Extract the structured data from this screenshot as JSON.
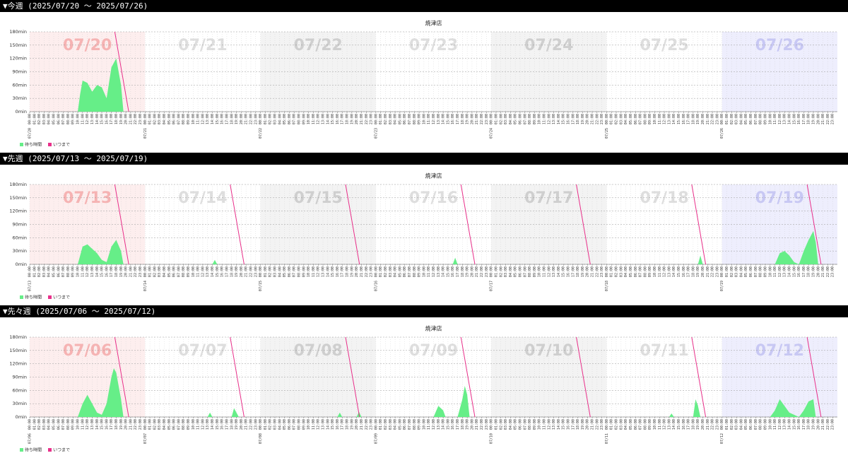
{
  "chart_data": [
    {
      "type": "area",
      "header": "▼今週 (2025/07/20 〜 2025/07/26)",
      "title": "焼津店",
      "days": [
        "07/20",
        "07/21",
        "07/22",
        "07/23",
        "07/24",
        "07/25",
        "07/26"
      ],
      "hours": [
        "00:00",
        "01:00",
        "02:00",
        "03:00",
        "04:00",
        "05:00",
        "06:00",
        "07:00",
        "08:00",
        "09:00",
        "10:00",
        "11:00",
        "12:00",
        "13:00",
        "14:00",
        "15:00",
        "16:00",
        "17:00",
        "18:00",
        "19:00",
        "20:00",
        "21:00",
        "22:00",
        "23:00"
      ],
      "band_colors": [
        "#fdeeee",
        "#ffffff",
        "#f3f3f3",
        "#ffffff",
        "#f3f3f3",
        "#ffffff",
        "#eeeefd"
      ],
      "day_label_colors": [
        "#f6b3b3",
        "#dedede",
        "#cfcfcf",
        "#dedede",
        "#cfcfcf",
        "#dedede",
        "#c8c8f4"
      ],
      "xlim": [
        0,
        168
      ],
      "ylim": [
        0,
        180
      ],
      "yticks": [
        {
          "value": 0,
          "label": "0min"
        },
        {
          "value": 30,
          "label": "30min"
        },
        {
          "value": 60,
          "label": "60min"
        },
        {
          "value": 90,
          "label": "90min"
        },
        {
          "value": 120,
          "label": "120min"
        },
        {
          "value": 150,
          "label": "150min"
        },
        {
          "value": 180,
          "label": "180min"
        }
      ],
      "grid": true,
      "series": [
        {
          "name": "待ち時間",
          "kind": "area",
          "color": "#66ee88",
          "x": [
            10,
            10.5,
            11,
            12,
            13,
            14,
            15,
            16,
            17,
            18,
            18.5,
            19,
            19.5
          ],
          "values": [
            0,
            40,
            70,
            65,
            45,
            60,
            55,
            30,
            100,
            120,
            90,
            60,
            0
          ]
        },
        {
          "name": "いつまで",
          "kind": "line",
          "color": "#e8308a",
          "x": [
            17.7,
            20.6
          ],
          "values": [
            180,
            0
          ]
        }
      ]
    },
    {
      "type": "area",
      "header": "▼先週 (2025/07/13 〜 2025/07/19)",
      "title": "焼津店",
      "days": [
        "07/13",
        "07/14",
        "07/15",
        "07/16",
        "07/17",
        "07/18",
        "07/19"
      ],
      "hours": [
        "00:00",
        "01:00",
        "02:00",
        "03:00",
        "04:00",
        "05:00",
        "06:00",
        "07:00",
        "08:00",
        "09:00",
        "10:00",
        "11:00",
        "12:00",
        "13:00",
        "14:00",
        "15:00",
        "16:00",
        "17:00",
        "18:00",
        "19:00",
        "20:00",
        "21:00",
        "22:00",
        "23:00"
      ],
      "band_colors": [
        "#fdeeee",
        "#ffffff",
        "#f3f3f3",
        "#ffffff",
        "#f3f3f3",
        "#ffffff",
        "#eeeefd"
      ],
      "day_label_colors": [
        "#f6b3b3",
        "#dedede",
        "#cfcfcf",
        "#dedede",
        "#cfcfcf",
        "#dedede",
        "#c8c8f4"
      ],
      "xlim": [
        0,
        168
      ],
      "ylim": [
        0,
        180
      ],
      "yticks": [
        {
          "value": 0,
          "label": "0min"
        },
        {
          "value": 30,
          "label": "30min"
        },
        {
          "value": 60,
          "label": "60min"
        },
        {
          "value": 90,
          "label": "90min"
        },
        {
          "value": 120,
          "label": "120min"
        },
        {
          "value": 150,
          "label": "150min"
        },
        {
          "value": 180,
          "label": "180min"
        }
      ],
      "grid": true,
      "series": [
        {
          "name": "待ち時間",
          "kind": "area",
          "color": "#66ee88",
          "x": [
            10,
            11,
            12,
            13,
            14,
            15,
            16,
            17,
            18,
            19,
            19.5,
            null,
            38,
            38.5,
            39,
            null,
            88,
            88.5,
            89,
            null,
            139,
            139.5,
            140,
            null,
            155,
            156,
            157,
            158,
            159,
            160,
            161,
            162,
            163,
            163.5,
            164
          ],
          "values": [
            0,
            40,
            45,
            35,
            25,
            10,
            5,
            40,
            55,
            30,
            0,
            null,
            0,
            10,
            0,
            null,
            0,
            15,
            0,
            null,
            0,
            20,
            0,
            null,
            0,
            25,
            30,
            20,
            5,
            0,
            30,
            55,
            75,
            50,
            0
          ]
        },
        {
          "name": "いつまで",
          "kind": "line",
          "color": "#e8308a",
          "x": [
            17.7,
            20.6,
            null,
            41.7,
            44.6,
            null,
            65.7,
            68.6,
            null,
            89.7,
            92.6,
            null,
            113.7,
            116.6,
            null,
            137.7,
            140.6,
            null,
            161.7,
            164.6
          ],
          "values": [
            180,
            0,
            null,
            180,
            0,
            null,
            180,
            0,
            null,
            180,
            0,
            null,
            180,
            0,
            null,
            180,
            0,
            null,
            180,
            0
          ]
        }
      ]
    },
    {
      "type": "area",
      "header": "▼先々週 (2025/07/06 〜 2025/07/12)",
      "title": "焼津店",
      "days": [
        "07/06",
        "07/07",
        "07/08",
        "07/09",
        "07/10",
        "07/11",
        "07/12"
      ],
      "hours": [
        "00:00",
        "01:00",
        "02:00",
        "03:00",
        "04:00",
        "05:00",
        "06:00",
        "07:00",
        "08:00",
        "09:00",
        "10:00",
        "11:00",
        "12:00",
        "13:00",
        "14:00",
        "15:00",
        "16:00",
        "17:00",
        "18:00",
        "19:00",
        "20:00",
        "21:00",
        "22:00",
        "23:00"
      ],
      "band_colors": [
        "#fdeeee",
        "#ffffff",
        "#f3f3f3",
        "#ffffff",
        "#f3f3f3",
        "#ffffff",
        "#eeeefd"
      ],
      "day_label_colors": [
        "#f6b3b3",
        "#dedede",
        "#cfcfcf",
        "#dedede",
        "#cfcfcf",
        "#dedede",
        "#c8c8f4"
      ],
      "xlim": [
        0,
        168
      ],
      "ylim": [
        0,
        180
      ],
      "yticks": [
        {
          "value": 0,
          "label": "0min"
        },
        {
          "value": 30,
          "label": "30min"
        },
        {
          "value": 60,
          "label": "60min"
        },
        {
          "value": 90,
          "label": "90min"
        },
        {
          "value": 120,
          "label": "120min"
        },
        {
          "value": 150,
          "label": "150min"
        },
        {
          "value": 180,
          "label": "180min"
        }
      ],
      "grid": true,
      "series": [
        {
          "name": "待ち時間",
          "kind": "area",
          "color": "#66ee88",
          "x": [
            10,
            11,
            12,
            13,
            14,
            15,
            16,
            17,
            17.5,
            18,
            19,
            19.5,
            null,
            37,
            37.5,
            38,
            null,
            42,
            42.5,
            43,
            43.5,
            null,
            64,
            64.5,
            65,
            null,
            68,
            68.5,
            69,
            null,
            84,
            85,
            86,
            86.5,
            null,
            89,
            90,
            90.5,
            91,
            91.5,
            null,
            133,
            133.5,
            134,
            null,
            138,
            138.5,
            139,
            139.5,
            null,
            154,
            155,
            156,
            157,
            158,
            159,
            160,
            161,
            162,
            163,
            163.5
          ],
          "values": [
            0,
            30,
            50,
            30,
            10,
            5,
            30,
            90,
            110,
            100,
            40,
            0,
            null,
            0,
            10,
            0,
            null,
            0,
            20,
            10,
            0,
            null,
            0,
            10,
            0,
            null,
            0,
            12,
            0,
            null,
            0,
            25,
            15,
            0,
            null,
            0,
            40,
            70,
            50,
            0,
            null,
            0,
            8,
            0,
            null,
            0,
            40,
            25,
            0,
            null,
            0,
            15,
            40,
            25,
            10,
            5,
            0,
            15,
            35,
            40,
            0
          ]
        },
        {
          "name": "いつまで",
          "kind": "line",
          "color": "#e8308a",
          "x": [
            17.7,
            20.6,
            null,
            41.7,
            44.6,
            null,
            65.7,
            68.6,
            null,
            89.7,
            92.6,
            null,
            113.7,
            116.6,
            null,
            137.7,
            140.6,
            null,
            161.7,
            164.6
          ],
          "values": [
            180,
            0,
            null,
            180,
            0,
            null,
            180,
            0,
            null,
            180,
            0,
            null,
            180,
            0,
            null,
            180,
            0,
            null,
            180,
            0
          ]
        }
      ]
    }
  ]
}
